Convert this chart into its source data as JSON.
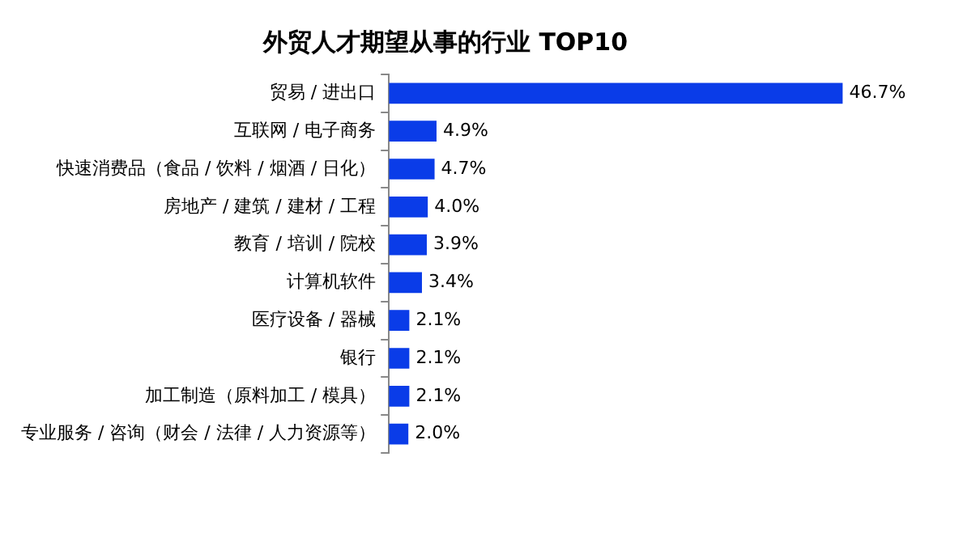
{
  "chart_data": {
    "type": "bar",
    "orientation": "horizontal",
    "title": "外贸人才期望从事的行业 TOP10",
    "categories": [
      "贸易 / 进出口",
      "互联网 / 电子商务",
      "快速消费品（食品 / 饮料 / 烟酒 / 日化）",
      "房地产 / 建筑 / 建材 / 工程",
      "教育 / 培训 / 院校",
      "计算机软件",
      "医疗设备 / 器械",
      "银行",
      "加工制造（原料加工 / 模具）",
      "专业服务 / 咨询（财会 / 法律 / 人力资源等）"
    ],
    "values": [
      46.7,
      4.9,
      4.7,
      4.0,
      3.9,
      3.4,
      2.1,
      2.1,
      2.1,
      2.0
    ],
    "value_labels": [
      "46.7%",
      "4.9%",
      "4.7%",
      "4.0%",
      "3.9%",
      "3.4%",
      "2.1%",
      "2.1%",
      "2.1%",
      "2.0%"
    ],
    "color": "#0a3ce8",
    "grid": false,
    "legend": false,
    "tick_labels": "y"
  }
}
